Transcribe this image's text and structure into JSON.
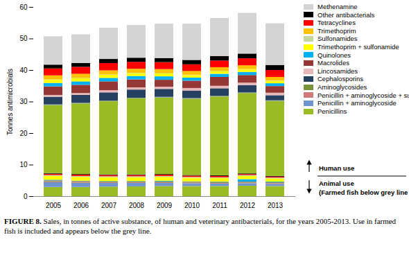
{
  "chart_data": {
    "type": "bar",
    "stacked": true,
    "ylabel": "Tonnes antimicrobials",
    "caption_label": "FIGURE 8.",
    "caption": "Sales, in tonnes of active substance, of human and veterinary antibacterials, for the years 2005-2013. Use in farmed fish is included and appears below the grey line.",
    "annotations": [
      "Human use",
      "Animal use",
      "(Farmed fish below grey line)"
    ],
    "categories": [
      "2005",
      "2006",
      "2007",
      "2008",
      "2009",
      "2010",
      "2011",
      "2012",
      "2013"
    ],
    "ylim": [
      0,
      60
    ],
    "yticks": [
      0,
      10,
      20,
      30,
      40,
      50,
      60
    ],
    "legend": "right",
    "animal_series": [
      {
        "name": "Penicillins",
        "color": "#9bbb24",
        "values": [
          2.9,
          2.9,
          3.0,
          3.1,
          3.2,
          3.2,
          3.2,
          3.3,
          3.2
        ]
      },
      {
        "name": "Penicillin + aminoglycoside",
        "color": "#6f95cf",
        "values": [
          1.5,
          1.3,
          1.2,
          1.1,
          1.0,
          0.9,
          0.8,
          0.8,
          0.7
        ]
      },
      {
        "name": "Penicillin + aminoglycoside + sulfonamide",
        "color": "#d07a7a",
        "values": [
          0.3,
          0.3,
          0.2,
          0.2,
          0.2,
          0.2,
          0.2,
          0.2,
          0.2
        ]
      },
      {
        "name": "Aminoglycosides",
        "color": "#77933c",
        "values": [
          0.2,
          0.2,
          0.2,
          0.2,
          0.2,
          0.2,
          0.2,
          0.2,
          0.2
        ]
      },
      {
        "name": "Macrolides",
        "color": "#953735",
        "values": [
          0.1,
          0.1,
          0.1,
          0.1,
          0.1,
          0.1,
          0.1,
          0.1,
          0.1
        ]
      },
      {
        "name": "Quinolones",
        "color": "#00b0f0",
        "values": [
          0.2,
          0.1,
          0.1,
          0.1,
          0.2,
          0.1,
          0.1,
          0.8,
          0.2
        ]
      },
      {
        "name": "Trimethoprim + sulfonamide",
        "color": "#ffff00",
        "values": [
          1.2,
          1.2,
          1.2,
          1.2,
          1.2,
          1.1,
          1.1,
          1.0,
          1.0
        ]
      },
      {
        "name": "Sulfonamides",
        "color": "#c3d69b",
        "values": [
          0.3,
          0.3,
          0.3,
          0.3,
          0.3,
          0.3,
          0.3,
          0.3,
          0.3
        ]
      },
      {
        "name": "Tetracyclines",
        "color": "#ff0000",
        "values": [
          0.4,
          0.4,
          0.4,
          0.4,
          0.4,
          0.4,
          0.4,
          0.3,
          0.3
        ]
      },
      {
        "name": "Other antibacterials",
        "color": "#000000",
        "values": [
          0.2,
          0.2,
          0.2,
          0.2,
          0.2,
          0.2,
          0.2,
          0.2,
          0.2
        ]
      }
    ],
    "series": [
      {
        "name": "Penicillins",
        "color": "#9bbb24",
        "values": [
          21.6,
          22.4,
          23.2,
          24.1,
          24.3,
          24.2,
          25.0,
          25.5,
          23.8
        ]
      },
      {
        "name": "Penicillin + aminoglycoside",
        "color": "#6f95cf",
        "values": [
          0.1,
          0.1,
          0.1,
          0.1,
          0.1,
          0.1,
          0.1,
          0.1,
          0.1
        ]
      },
      {
        "name": "Penicillin + aminoglycoside + sulfonamide",
        "color": "#d07a7a",
        "values": [
          0,
          0,
          0,
          0,
          0,
          0,
          0,
          0,
          0
        ]
      },
      {
        "name": "Aminoglycosides",
        "color": "#77933c",
        "values": [
          0.1,
          0.1,
          0.1,
          0.1,
          0.1,
          0.1,
          0.1,
          0.1,
          0.1
        ]
      },
      {
        "name": "Cephalosporins",
        "color": "#254061",
        "values": [
          2.4,
          2.5,
          2.6,
          2.6,
          2.5,
          2.4,
          2.4,
          2.3,
          1.6
        ]
      },
      {
        "name": "Lincosamides",
        "color": "#e6b9b8",
        "values": [
          0.6,
          0.6,
          0.7,
          0.7,
          0.7,
          0.8,
          0.8,
          0.8,
          0.8
        ]
      },
      {
        "name": "Macrolides",
        "color": "#953735",
        "values": [
          2.7,
          2.6,
          2.8,
          2.5,
          2.2,
          2.3,
          2.8,
          2.4,
          2.1
        ]
      },
      {
        "name": "Quinolones",
        "color": "#00b0f0",
        "values": [
          1.1,
          1.1,
          1.1,
          1.1,
          1.1,
          1.0,
          1.0,
          1.0,
          0.9
        ]
      },
      {
        "name": "Trimethoprim + sulfonamide",
        "color": "#ffff00",
        "values": [
          1.0,
          1.0,
          1.0,
          0.9,
          0.9,
          0.8,
          0.8,
          0.8,
          0.8
        ]
      },
      {
        "name": "Sulfonamides",
        "color": "#c3d69b",
        "values": [
          0.1,
          0.1,
          0.1,
          0.1,
          0.1,
          0.1,
          0.1,
          0.1,
          0.1
        ]
      },
      {
        "name": "Trimethoprim",
        "color": "#ffc000",
        "values": [
          1.3,
          1.3,
          1.3,
          1.3,
          1.3,
          1.2,
          1.2,
          1.2,
          1.1
        ]
      },
      {
        "name": "Tetracyclines",
        "color": "#ff0000",
        "values": [
          2.2,
          2.2,
          2.3,
          2.2,
          2.2,
          2.1,
          2.1,
          2.2,
          2.2
        ]
      },
      {
        "name": "Other antibacterials",
        "color": "#000000",
        "values": [
          1.2,
          1.2,
          1.3,
          1.3,
          1.3,
          1.4,
          1.4,
          1.5,
          1.6
        ]
      },
      {
        "name": "Methenamine",
        "color": "#d4d4d4",
        "values": [
          9.0,
          9.1,
          9.9,
          10.4,
          10.9,
          11.5,
          12.1,
          12.9,
          13.2
        ]
      }
    ]
  }
}
